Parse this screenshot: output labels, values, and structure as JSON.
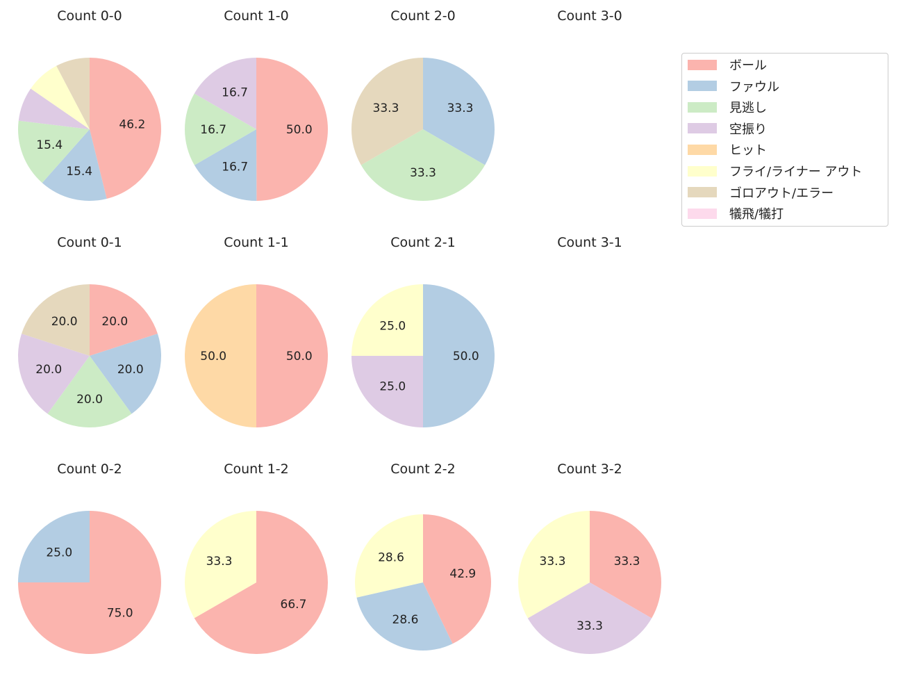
{
  "chart_data": {
    "type": "pie",
    "categories": [
      "ボール",
      "ファウル",
      "見逃し",
      "空振り",
      "ヒット",
      "フライ/ライナー アウト",
      "ゴロアウト/エラー",
      "犠飛/犠打"
    ],
    "colors": [
      "#fbb4ae",
      "#b3cde3",
      "#ccebc5",
      "#decbe4",
      "#fed9a6",
      "#ffffcc",
      "#e5d8bd",
      "#fddaec"
    ],
    "legend_position": "right",
    "start_angle": 90,
    "direction": "clockwise",
    "charts": [
      {
        "title": "Count 0-0",
        "values": [
          46.2,
          15.4,
          15.4,
          7.7,
          0,
          7.7,
          7.7,
          0
        ]
      },
      {
        "title": "Count 1-0",
        "values": [
          50.0,
          16.7,
          16.7,
          16.7,
          0,
          0,
          0,
          0
        ]
      },
      {
        "title": "Count 2-0",
        "values": [
          0,
          33.3,
          33.3,
          0,
          0,
          0,
          33.3,
          0
        ]
      },
      {
        "title": "Count 3-0",
        "values": []
      },
      {
        "title": "Count 0-1",
        "values": [
          20.0,
          20.0,
          20.0,
          20.0,
          0,
          0,
          20.0,
          0
        ]
      },
      {
        "title": "Count 1-1",
        "values": [
          50.0,
          0,
          0,
          0,
          50.0,
          0,
          0,
          0
        ]
      },
      {
        "title": "Count 2-1",
        "values": [
          0,
          50.0,
          0,
          25.0,
          0,
          25.0,
          0,
          0
        ]
      },
      {
        "title": "Count 3-1",
        "values": []
      },
      {
        "title": "Count 0-2",
        "values": [
          75.0,
          25.0,
          0,
          0,
          0,
          0,
          0,
          0
        ]
      },
      {
        "title": "Count 1-2",
        "values": [
          66.7,
          0,
          0,
          0,
          0,
          33.3,
          0,
          0
        ]
      },
      {
        "title": "Count 2-2",
        "values": [
          42.9,
          28.6,
          0,
          0,
          0,
          28.6,
          0,
          0
        ]
      },
      {
        "title": "Count 3-2",
        "values": [
          33.3,
          0,
          0,
          33.3,
          0,
          33.3,
          0,
          0
        ]
      }
    ]
  }
}
